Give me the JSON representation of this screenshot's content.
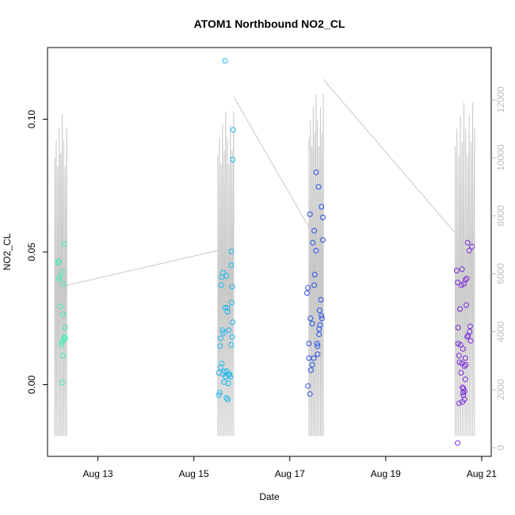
{
  "chart_data": {
    "type": "scatter",
    "title": "ATOM1 Northbound NO2_CL",
    "xlabel": "Date",
    "ylabel": "NO2_CL",
    "y2label": "",
    "x_ticks": [
      "Aug 13",
      "Aug 15",
      "Aug 17",
      "Aug 19",
      "Aug 21"
    ],
    "x_tick_days": [
      13,
      15,
      17,
      19,
      21
    ],
    "x_range_days": [
      11.95,
      21.2
    ],
    "ylim": [
      -0.027,
      0.127
    ],
    "y_ticks": [
      "0.00",
      "0.05",
      "0.10"
    ],
    "y_tick_values": [
      0.0,
      0.05,
      0.1
    ],
    "y2lim": [
      -300,
      13800
    ],
    "y2_ticks": [
      "0",
      "2000",
      "4000",
      "6000",
      "8000",
      "10000",
      "12000"
    ],
    "y2_tick_values": [
      0,
      2000,
      4000,
      6000,
      8000,
      10000,
      12000
    ],
    "grid": false,
    "colors": {
      "group1": "#3ff0b0",
      "group2": "#1ab8ee",
      "group3": "#2a52e6",
      "group4": "#7a2ad6",
      "secondary_line": "#c8c8c8"
    },
    "series": [
      {
        "values": [
          [
            12.17,
            0.046
          ],
          [
            12.19,
            0.0465
          ],
          [
            12.21,
            0.0405
          ],
          [
            12.19,
            0.0398
          ],
          [
            12.25,
            0.0425
          ],
          [
            12.28,
            0.038
          ],
          [
            12.3,
            0.053
          ],
          [
            12.22,
            0.0295
          ],
          [
            12.27,
            0.0265
          ],
          [
            12.32,
            0.0215
          ],
          [
            12.3,
            0.018
          ],
          [
            12.29,
            0.017
          ],
          [
            12.32,
            0.0175
          ],
          [
            12.24,
            0.015
          ],
          [
            12.25,
            0.016
          ],
          [
            12.27,
            0.011
          ],
          [
            12.25,
            0.0008
          ]
        ]
      },
      {
        "values": [
          [
            15.65,
            0.122
          ],
          [
            15.82,
            0.096
          ],
          [
            15.81,
            0.0848
          ],
          [
            15.78,
            0.0502
          ],
          [
            15.78,
            0.045
          ],
          [
            15.61,
            0.0422
          ],
          [
            15.58,
            0.0405
          ],
          [
            15.68,
            0.041
          ],
          [
            15.57,
            0.0375
          ],
          [
            15.8,
            0.037
          ],
          [
            15.79,
            0.031
          ],
          [
            15.65,
            0.029
          ],
          [
            15.7,
            0.029
          ],
          [
            15.7,
            0.0275
          ],
          [
            15.81,
            0.0235
          ],
          [
            15.6,
            0.0205
          ],
          [
            15.62,
            0.0195
          ],
          [
            15.73,
            0.0205
          ],
          [
            15.56,
            0.0175
          ],
          [
            15.8,
            0.018
          ],
          [
            15.78,
            0.015
          ],
          [
            15.55,
            0.0145
          ],
          [
            15.58,
            0.008
          ],
          [
            15.56,
            0.0065
          ],
          [
            15.64,
            0.005
          ],
          [
            15.69,
            0.005
          ],
          [
            15.52,
            0.0045
          ],
          [
            15.61,
            0.004
          ],
          [
            15.74,
            0.004
          ],
          [
            15.66,
            0.003
          ],
          [
            15.73,
            0.0035
          ],
          [
            15.76,
            0.003
          ],
          [
            15.63,
            0.001
          ],
          [
            15.72,
            0.0005
          ],
          [
            15.54,
            -0.003
          ],
          [
            15.52,
            -0.004
          ],
          [
            15.68,
            -0.005
          ],
          [
            15.71,
            -0.0055
          ]
        ]
      },
      {
        "values": [
          [
            17.55,
            0.08
          ],
          [
            17.6,
            0.0745
          ],
          [
            17.66,
            0.067
          ],
          [
            17.42,
            0.0642
          ],
          [
            17.69,
            0.063
          ],
          [
            17.51,
            0.058
          ],
          [
            17.48,
            0.0535
          ],
          [
            17.69,
            0.0545
          ],
          [
            17.55,
            0.0505
          ],
          [
            17.52,
            0.0415
          ],
          [
            17.51,
            0.0375
          ],
          [
            17.38,
            0.0365
          ],
          [
            17.36,
            0.0345
          ],
          [
            17.65,
            0.032
          ],
          [
            17.62,
            0.028
          ],
          [
            17.66,
            0.026
          ],
          [
            17.43,
            0.025
          ],
          [
            17.67,
            0.025
          ],
          [
            17.63,
            0.0225
          ],
          [
            17.47,
            0.023
          ],
          [
            17.61,
            0.021
          ],
          [
            17.61,
            0.019
          ],
          [
            17.57,
            0.0155
          ],
          [
            17.4,
            0.0155
          ],
          [
            17.58,
            0.0145
          ],
          [
            17.58,
            0.0115
          ],
          [
            17.4,
            0.01
          ],
          [
            17.5,
            0.01
          ],
          [
            17.47,
            0.0075
          ],
          [
            17.44,
            0.0055
          ],
          [
            17.38,
            -0.0005
          ],
          [
            17.42,
            -0.0035
          ]
        ]
      },
      {
        "values": [
          [
            20.71,
            0.0535
          ],
          [
            20.8,
            0.052
          ],
          [
            20.74,
            0.0505
          ],
          [
            20.48,
            0.043
          ],
          [
            20.59,
            0.0435
          ],
          [
            20.66,
            0.0395
          ],
          [
            20.69,
            0.04
          ],
          [
            20.5,
            0.0385
          ],
          [
            20.58,
            0.0375
          ],
          [
            20.63,
            0.038
          ],
          [
            20.68,
            0.03
          ],
          [
            20.55,
            0.0285
          ],
          [
            20.51,
            0.0215
          ],
          [
            20.76,
            0.022
          ],
          [
            20.75,
            0.02
          ],
          [
            20.72,
            0.0185
          ],
          [
            20.7,
            0.018
          ],
          [
            20.77,
            0.0165
          ],
          [
            20.51,
            0.0155
          ],
          [
            20.56,
            0.015
          ],
          [
            20.61,
            0.0135
          ],
          [
            20.53,
            0.011
          ],
          [
            20.66,
            0.01
          ],
          [
            20.54,
            0.0085
          ],
          [
            20.59,
            0.008
          ],
          [
            20.67,
            0.0075
          ],
          [
            20.64,
            0.007
          ],
          [
            20.57,
            0.0045
          ],
          [
            20.66,
            0.002
          ],
          [
            20.6,
            -0.001
          ],
          [
            20.62,
            -0.0015
          ],
          [
            20.64,
            -0.0025
          ],
          [
            20.61,
            -0.003
          ],
          [
            20.62,
            -0.004
          ],
          [
            20.64,
            -0.0055
          ],
          [
            20.53,
            -0.007
          ],
          [
            20.6,
            -0.0065
          ],
          [
            20.5,
            -0.022
          ]
        ]
      }
    ],
    "secondary_series": {
      "shape": "line",
      "bursts": [
        {
          "start": 12.1,
          "end": 12.35,
          "base": 5600,
          "peak": 11500,
          "low": 400,
          "n": 9
        },
        {
          "start": 15.5,
          "end": 15.83,
          "base": 6700,
          "peak": 11600,
          "low": 400,
          "n": 11
        },
        {
          "start": 17.4,
          "end": 17.7,
          "base": 7300,
          "peak": 12200,
          "low": 400,
          "n": 11
        },
        {
          "start": 20.45,
          "end": 20.85,
          "base": 7500,
          "peak": 11900,
          "low": 400,
          "n": 12
        }
      ],
      "connectors": [
        [
          [
            12.35,
            5600
          ],
          [
            15.5,
            6800
          ]
        ],
        [
          [
            15.83,
            12100
          ],
          [
            17.4,
            7600
          ]
        ],
        [
          [
            17.7,
            12700
          ],
          [
            20.45,
            7400
          ]
        ]
      ]
    }
  }
}
